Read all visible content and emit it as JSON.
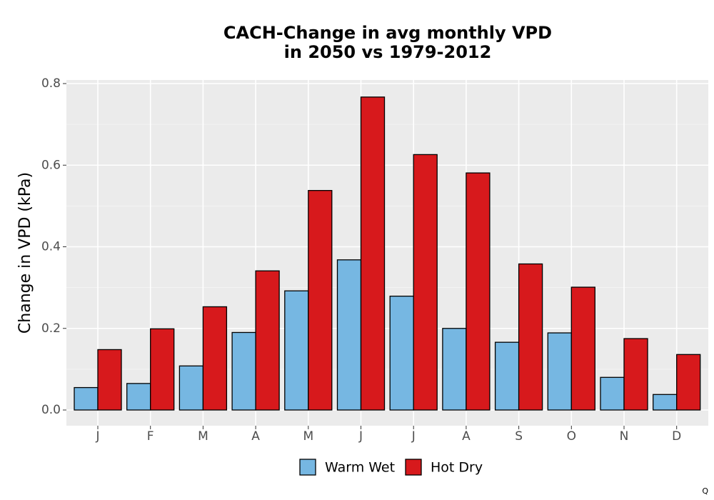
{
  "chart_data": {
    "type": "bar",
    "title_line1": "CACH-Change in avg monthly VPD",
    "title_line2": "in 2050 vs 1979-2012",
    "xlabel": "",
    "ylabel": "Change in VPD (kPa)",
    "categories": [
      "J",
      "F",
      "M",
      "A",
      "M",
      "J",
      "J",
      "A",
      "S",
      "O",
      "N",
      "D"
    ],
    "ylim": [
      0,
      0.8
    ],
    "yticks": [
      "0.0",
      "0.2",
      "0.4",
      "0.6",
      "0.8"
    ],
    "grid": true,
    "legend_position": "bottom",
    "series": [
      {
        "name": "Warm Wet",
        "color": "#76b7e2",
        "values": [
          0.055,
          0.065,
          0.108,
          0.19,
          0.292,
          0.368,
          0.279,
          0.2,
          0.166,
          0.189,
          0.08,
          0.038
        ]
      },
      {
        "name": "Hot Dry",
        "color": "#d7191c",
        "values": [
          0.148,
          0.199,
          0.253,
          0.341,
          0.538,
          0.767,
          0.626,
          0.581,
          0.358,
          0.301,
          0.175,
          0.136
        ]
      }
    ]
  },
  "footer_mark": "Q"
}
